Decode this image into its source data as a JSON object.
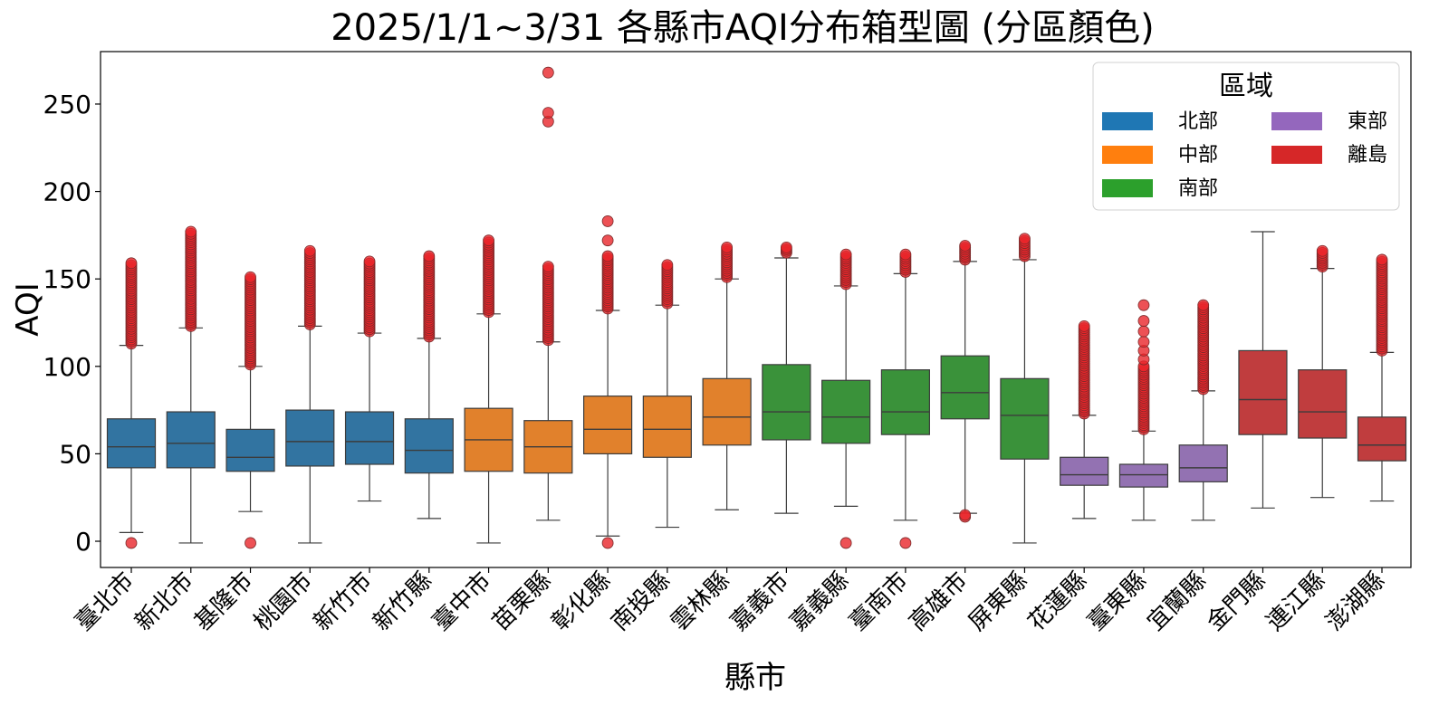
{
  "chart_data": {
    "type": "box",
    "title": "2025/1/1~3/31 各縣市AQI分布箱型圖 (分區顏色)",
    "xlabel": "縣市",
    "ylabel": "AQI",
    "ylim": [
      -15,
      280
    ],
    "yticks": [
      0,
      50,
      100,
      150,
      200,
      250
    ],
    "grid": false,
    "legend": {
      "title": "區域",
      "placement": "top-right",
      "entries": [
        {
          "name": "北部",
          "color": "#1f77b4"
        },
        {
          "name": "中部",
          "color": "#ff7f0e"
        },
        {
          "name": "南部",
          "color": "#2ca02c"
        },
        {
          "name": "東部",
          "color": "#9467bd"
        },
        {
          "name": "離島",
          "color": "#d62728"
        }
      ]
    },
    "region_colors": {
      "北部": "#3274a1",
      "中部": "#e1812c",
      "南部": "#3a923a",
      "東部": "#9372b2",
      "離島": "#c03d3e"
    },
    "outlier_color": "#e8262a",
    "boxes": [
      {
        "name": "臺北市",
        "region": "北部",
        "whislo": 5,
        "q1": 42,
        "med": 54,
        "q3": 70,
        "whishi": 112,
        "fliers_low": [
          -1
        ],
        "fliers_high_range": [
          113,
          159
        ]
      },
      {
        "name": "新北市",
        "region": "北部",
        "whislo": -1,
        "q1": 42,
        "med": 56,
        "q3": 74,
        "whishi": 122,
        "fliers_low": [],
        "fliers_high_range": [
          123,
          177
        ]
      },
      {
        "name": "基隆市",
        "region": "北部",
        "whislo": 17,
        "q1": 40,
        "med": 48,
        "q3": 64,
        "whishi": 100,
        "fliers_low": [
          -1
        ],
        "fliers_high_range": [
          101,
          151
        ]
      },
      {
        "name": "桃園市",
        "region": "北部",
        "whislo": -1,
        "q1": 43,
        "med": 57,
        "q3": 75,
        "whishi": 123,
        "fliers_low": [],
        "fliers_high_range": [
          124,
          166
        ]
      },
      {
        "name": "新竹市",
        "region": "北部",
        "whislo": 23,
        "q1": 44,
        "med": 57,
        "q3": 74,
        "whishi": 119,
        "fliers_low": [],
        "fliers_high_range": [
          120,
          160
        ]
      },
      {
        "name": "新竹縣",
        "region": "北部",
        "whislo": 13,
        "q1": 39,
        "med": 52,
        "q3": 70,
        "whishi": 116,
        "fliers_low": [],
        "fliers_high_range": [
          117,
          163
        ]
      },
      {
        "name": "臺中市",
        "region": "中部",
        "whislo": -1,
        "q1": 40,
        "med": 58,
        "q3": 76,
        "whishi": 130,
        "fliers_low": [],
        "fliers_high_range": [
          131,
          172
        ]
      },
      {
        "name": "苗栗縣",
        "region": "中部",
        "whislo": 12,
        "q1": 39,
        "med": 54,
        "q3": 69,
        "whishi": 114,
        "fliers_low": [],
        "fliers_high_range": [
          115,
          157
        ],
        "fliers_extra": [
          240,
          245,
          268
        ]
      },
      {
        "name": "彰化縣",
        "region": "中部",
        "whislo": 3,
        "q1": 50,
        "med": 64,
        "q3": 83,
        "whishi": 132,
        "fliers_low": [
          -1
        ],
        "fliers_high_range": [
          133,
          163
        ],
        "fliers_extra": [
          172,
          183
        ]
      },
      {
        "name": "南投縣",
        "region": "中部",
        "whislo": 8,
        "q1": 48,
        "med": 64,
        "q3": 83,
        "whishi": 135,
        "fliers_low": [],
        "fliers_high_range": [
          136,
          158
        ]
      },
      {
        "name": "雲林縣",
        "region": "中部",
        "whislo": 18,
        "q1": 55,
        "med": 71,
        "q3": 93,
        "whishi": 150,
        "fliers_low": [],
        "fliers_high_range": [
          151,
          168
        ]
      },
      {
        "name": "嘉義市",
        "region": "南部",
        "whislo": 16,
        "q1": 58,
        "med": 74,
        "q3": 101,
        "whishi": 162,
        "fliers_low": [],
        "fliers_high_range": [
          165,
          168
        ]
      },
      {
        "name": "嘉義縣",
        "region": "南部",
        "whislo": 20,
        "q1": 56,
        "med": 71,
        "q3": 92,
        "whishi": 146,
        "fliers_low": [
          -1
        ],
        "fliers_high_range": [
          147,
          164
        ]
      },
      {
        "name": "臺南市",
        "region": "南部",
        "whislo": 12,
        "q1": 61,
        "med": 74,
        "q3": 98,
        "whishi": 153,
        "fliers_low": [
          -1
        ],
        "fliers_high_range": [
          154,
          164
        ]
      },
      {
        "name": "高雄市",
        "region": "南部",
        "whislo": 16,
        "q1": 70,
        "med": 85,
        "q3": 106,
        "whishi": 160,
        "fliers_low": [
          14,
          15
        ],
        "fliers_high_range": [
          161,
          169
        ]
      },
      {
        "name": "屏東縣",
        "region": "南部",
        "whislo": -1,
        "q1": 47,
        "med": 72,
        "q3": 93,
        "whishi": 161,
        "fliers_low": [],
        "fliers_high_range": [
          163,
          173
        ]
      },
      {
        "name": "花蓮縣",
        "region": "東部",
        "whislo": 13,
        "q1": 32,
        "med": 38,
        "q3": 48,
        "whishi": 72,
        "fliers_low": [],
        "fliers_high_range": [
          73,
          123
        ]
      },
      {
        "name": "臺東縣",
        "region": "東部",
        "whislo": 12,
        "q1": 31,
        "med": 38,
        "q3": 44,
        "whishi": 63,
        "fliers_low": [],
        "fliers_high_range": [
          64,
          100
        ],
        "fliers_extra": [
          104,
          109,
          114,
          120,
          126,
          135
        ]
      },
      {
        "name": "宜蘭縣",
        "region": "東部",
        "whislo": 12,
        "q1": 34,
        "med": 42,
        "q3": 55,
        "whishi": 86,
        "fliers_low": [],
        "fliers_high_range": [
          87,
          135
        ]
      },
      {
        "name": "金門縣",
        "region": "離島",
        "whislo": 19,
        "q1": 61,
        "med": 81,
        "q3": 109,
        "whishi": 177,
        "fliers_low": [],
        "fliers_high_range": []
      },
      {
        "name": "連江縣",
        "region": "離島",
        "whislo": 25,
        "q1": 59,
        "med": 74,
        "q3": 98,
        "whishi": 156,
        "fliers_low": [],
        "fliers_high_range": [
          157,
          166
        ]
      },
      {
        "name": "澎湖縣",
        "region": "離島",
        "whislo": 23,
        "q1": 46,
        "med": 55,
        "q3": 71,
        "whishi": 108,
        "fliers_low": [],
        "fliers_high_range": [
          109,
          161
        ]
      }
    ]
  }
}
